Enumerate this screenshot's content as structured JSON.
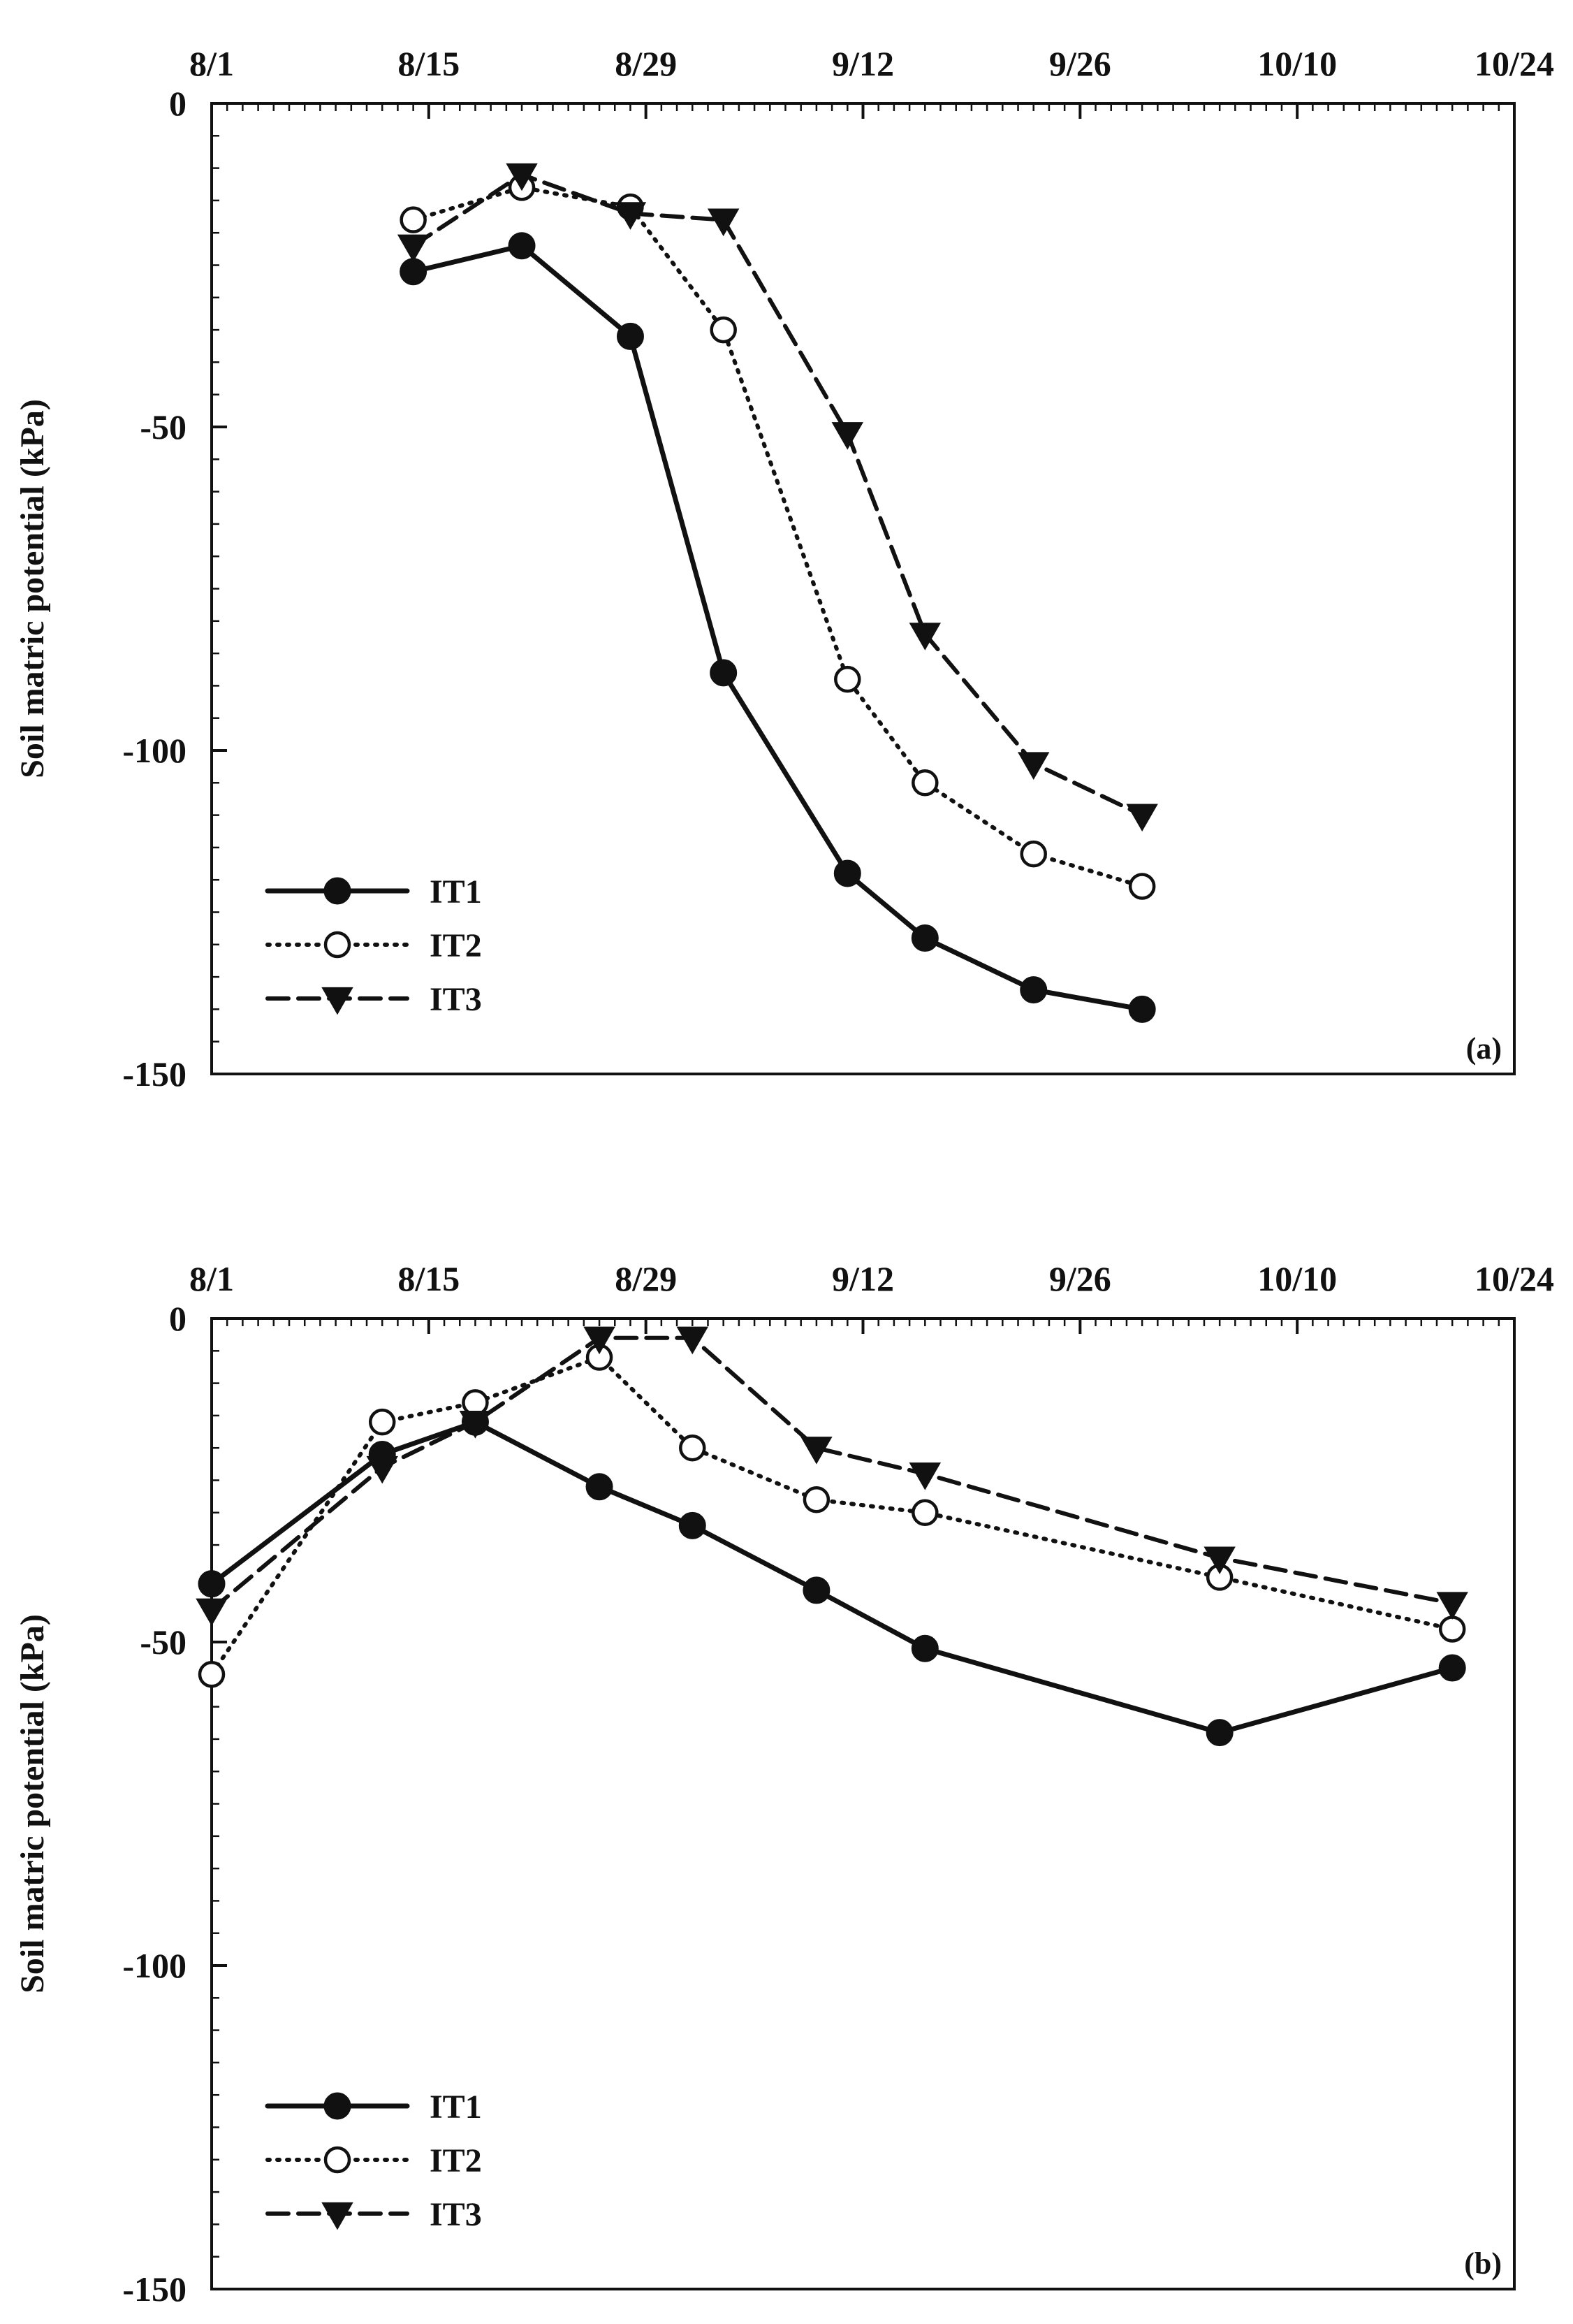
{
  "colors": {
    "ink": "#111111",
    "background": "#ffffff"
  },
  "x_axis": {
    "tick_labels": [
      "8/1",
      "8/15",
      "8/29",
      "9/12",
      "9/26",
      "10/10",
      "10/24"
    ],
    "tick_days": [
      0,
      14,
      28,
      42,
      56,
      70,
      84
    ],
    "day_range": [
      0,
      84
    ]
  },
  "chart_data": [
    {
      "type": "line",
      "panel_label": "(a)",
      "ylabel": "Soil matric potential (kPa)",
      "ylim": [
        -150,
        0
      ],
      "y_tick_labels": [
        "0",
        "-50",
        "-100",
        "-150"
      ],
      "y_tick_values": [
        0,
        -50,
        -100,
        -150
      ],
      "x_tick_labels": [
        "8/1",
        "8/15",
        "8/29",
        "9/12",
        "9/26",
        "10/10",
        "10/24"
      ],
      "legend_position": "bottom-left",
      "series": [
        {
          "name": "IT1",
          "marker": "filled-circle",
          "line_style": "solid",
          "x_days": [
            13,
            20,
            27,
            33,
            41,
            46,
            53,
            60
          ],
          "x_dates": [
            "8/14",
            "8/21",
            "8/28",
            "9/3",
            "9/11",
            "9/16",
            "9/23",
            "9/30"
          ],
          "values": [
            -26,
            -22,
            -36,
            -88,
            -119,
            -129,
            -137,
            -140
          ]
        },
        {
          "name": "IT2",
          "marker": "open-circle",
          "line_style": "dotted",
          "x_days": [
            13,
            20,
            27,
            33,
            41,
            46,
            53,
            60
          ],
          "x_dates": [
            "8/14",
            "8/21",
            "8/28",
            "9/3",
            "9/11",
            "9/16",
            "9/23",
            "9/30"
          ],
          "values": [
            -18,
            -13,
            -16,
            -35,
            -89,
            -105,
            -116,
            -121
          ]
        },
        {
          "name": "IT3",
          "marker": "filled-triangle-down",
          "line_style": "dashed",
          "x_days": [
            13,
            20,
            27,
            33,
            41,
            46,
            53,
            60
          ],
          "x_dates": [
            "8/14",
            "8/21",
            "8/28",
            "9/3",
            "9/11",
            "9/16",
            "9/23",
            "9/30"
          ],
          "values": [
            -22,
            -11,
            -17,
            -18,
            -51,
            -82,
            -102,
            -110
          ]
        }
      ]
    },
    {
      "type": "line",
      "panel_label": "(b)",
      "ylabel": "Soil matric potential (kPa)",
      "ylim": [
        -150,
        0
      ],
      "y_tick_labels": [
        "0",
        "-50",
        "-100",
        "-150"
      ],
      "y_tick_values": [
        0,
        -50,
        -100,
        -150
      ],
      "x_tick_labels": [
        "8/1",
        "8/15",
        "8/29",
        "9/12",
        "9/26",
        "10/10",
        "10/24"
      ],
      "legend_position": "bottom-left",
      "series": [
        {
          "name": "IT1",
          "marker": "filled-circle",
          "line_style": "solid",
          "x_days": [
            0,
            11,
            17,
            25,
            31,
            39,
            46,
            65,
            80
          ],
          "x_dates": [
            "8/1",
            "8/12",
            "8/18",
            "8/26",
            "9/1",
            "9/9",
            "9/16",
            "10/5",
            "10/20"
          ],
          "values": [
            -41,
            -21,
            -16,
            -26,
            -32,
            -42,
            -51,
            -64,
            -54
          ]
        },
        {
          "name": "IT2",
          "marker": "open-circle",
          "line_style": "dotted",
          "x_days": [
            0,
            11,
            17,
            25,
            31,
            39,
            46,
            65,
            80
          ],
          "x_dates": [
            "8/1",
            "8/12",
            "8/18",
            "8/26",
            "9/1",
            "9/9",
            "9/16",
            "10/5",
            "10/20"
          ],
          "values": [
            -55,
            -16,
            -13,
            -6,
            -20,
            -28,
            -30,
            -40,
            -48
          ]
        },
        {
          "name": "IT3",
          "marker": "filled-triangle-down",
          "line_style": "dashed",
          "x_days": [
            0,
            11,
            17,
            25,
            31,
            39,
            46,
            65,
            80
          ],
          "x_dates": [
            "8/1",
            "8/12",
            "8/18",
            "8/26",
            "9/1",
            "9/9",
            "9/16",
            "10/5",
            "10/20"
          ],
          "values": [
            -45,
            -23,
            -16,
            -3,
            -3,
            -20,
            -24,
            -37,
            -44
          ]
        }
      ]
    }
  ]
}
